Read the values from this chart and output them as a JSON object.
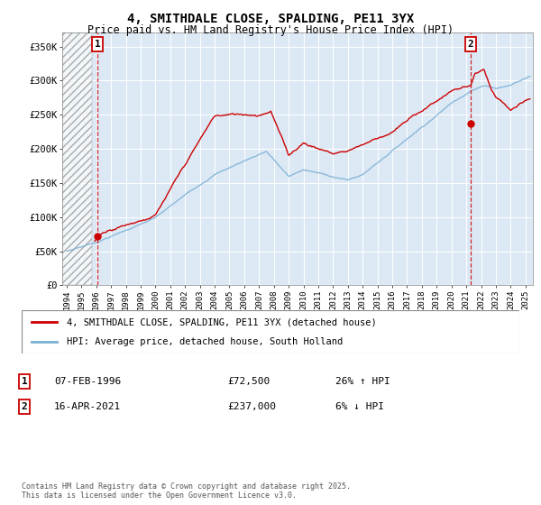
{
  "title": "4, SMITHDALE CLOSE, SPALDING, PE11 3YX",
  "subtitle": "Price paid vs. HM Land Registry's House Price Index (HPI)",
  "ylim": [
    0,
    370000
  ],
  "xlim": [
    1993.7,
    2025.5
  ],
  "yticks": [
    0,
    50000,
    100000,
    150000,
    200000,
    250000,
    300000,
    350000
  ],
  "ytick_labels": [
    "£0",
    "£50K",
    "£100K",
    "£150K",
    "£200K",
    "£250K",
    "£300K",
    "£350K"
  ],
  "xticks": [
    1994,
    1995,
    1996,
    1997,
    1998,
    1999,
    2000,
    2001,
    2002,
    2003,
    2004,
    2005,
    2006,
    2007,
    2008,
    2009,
    2010,
    2011,
    2012,
    2013,
    2014,
    2015,
    2016,
    2017,
    2018,
    2019,
    2020,
    2021,
    2022,
    2023,
    2024,
    2025
  ],
  "bg_color": "#dce9f5",
  "hatch_end_year": 1995.7,
  "transaction1": {
    "year": 1996.08,
    "price": 72500,
    "label": "1"
  },
  "transaction2": {
    "year": 2021.28,
    "price": 237000,
    "label": "2"
  },
  "legend_entries": [
    "4, SMITHDALE CLOSE, SPALDING, PE11 3YX (detached house)",
    "HPI: Average price, detached house, South Holland"
  ],
  "annotation1": {
    "date": "07-FEB-1996",
    "price": "£72,500",
    "hpi": "26% ↑ HPI"
  },
  "annotation2": {
    "date": "16-APR-2021",
    "price": "£237,000",
    "hpi": "6% ↓ HPI"
  },
  "footnote": "Contains HM Land Registry data © Crown copyright and database right 2025.\nThis data is licensed under the Open Government Licence v3.0.",
  "red_color": "#cc0000",
  "blue_color": "#7bafd4"
}
